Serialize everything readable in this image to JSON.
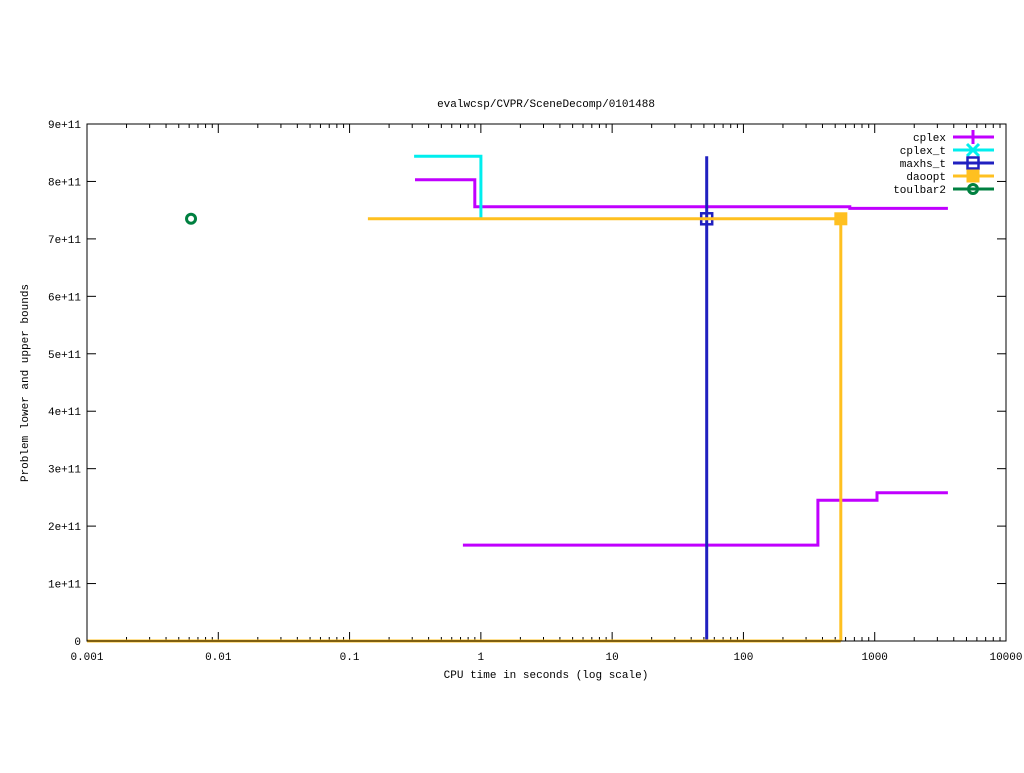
{
  "chart_data": {
    "type": "line",
    "title": "evalwcsp/CVPR/SceneDecomp/0101488",
    "xlabel": "CPU time in seconds (log scale)",
    "ylabel": "Problem lower and upper bounds",
    "x_scale": "log",
    "xlim": [
      0.001,
      10000
    ],
    "ylim": [
      0,
      900000000000
    ],
    "x_ticks": [
      0.001,
      0.01,
      0.1,
      1,
      10,
      100,
      1000,
      10000
    ],
    "x_tick_labels": [
      "0.001",
      "0.01",
      "0.1",
      "1",
      "10",
      "100",
      "1000",
      "10000"
    ],
    "y_ticks": [
      0,
      100000000000,
      200000000000,
      300000000000,
      400000000000,
      500000000000,
      600000000000,
      700000000000,
      800000000000,
      900000000000
    ],
    "y_tick_labels": [
      "0",
      "1e+11",
      "2e+11",
      "3e+11",
      "4e+11",
      "5e+11",
      "6e+11",
      "7e+11",
      "8e+11",
      "9e+11"
    ],
    "grid": false,
    "legend_position": "top-right",
    "series": [
      {
        "name": "cplex",
        "color": "#c000ff",
        "marker": "plus",
        "lines": [
          [
            [
              0.315,
              803000000000
            ],
            [
              0.9,
              803000000000
            ],
            [
              0.9,
              756000000000
            ],
            [
              646,
              756000000000
            ],
            [
              646,
              753000000000
            ],
            [
              3610,
              753000000000
            ]
          ],
          [
            [
              0.73,
              167000000000
            ],
            [
              369,
              167000000000
            ],
            [
              369,
              245000000000
            ],
            [
              1040,
              245000000000
            ],
            [
              1040,
              258000000000
            ],
            [
              3610,
              258000000000
            ]
          ]
        ],
        "markers": []
      },
      {
        "name": "cplex_t",
        "color": "#00eeee",
        "marker": "cross",
        "lines": [
          [
            [
              0.31,
              844000000000
            ],
            [
              1.0,
              844000000000
            ],
            [
              1.0,
              737000000000
            ]
          ]
        ],
        "markers": []
      },
      {
        "name": "maxhs_t",
        "color": "#2020c0",
        "marker": "open-square",
        "lines": [
          [
            [
              52.5,
              844000000000
            ],
            [
              52.5,
              0
            ]
          ]
        ],
        "markers": [
          [
            52.5,
            735000000000
          ]
        ]
      },
      {
        "name": "daoopt",
        "color": "#ffc020",
        "marker": "filled-square",
        "lines": [
          [
            [
              0.138,
              735000000000
            ],
            [
              552,
              735000000000
            ],
            [
              552,
              0
            ]
          ],
          [
            [
              0.001,
              0
            ],
            [
              552,
              0
            ]
          ]
        ],
        "markers": [
          [
            552,
            735000000000
          ]
        ]
      },
      {
        "name": "toulbar2",
        "color": "#008040",
        "marker": "open-circle",
        "lines": [],
        "markers": [
          [
            0.0062,
            735000000000
          ]
        ]
      }
    ]
  }
}
